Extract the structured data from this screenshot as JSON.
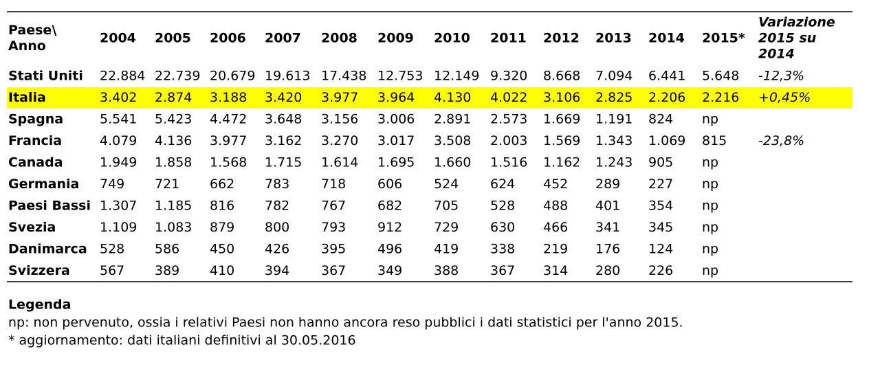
{
  "table": {
    "header": [
      [
        "Paese\\",
        "Anno"
      ],
      "2004",
      "2005",
      "2006",
      "2007",
      "2008",
      "2009",
      "2010",
      "2011",
      "2012",
      "2013",
      "2014",
      "2015*",
      [
        "Variazione",
        "2015 su",
        "2014"
      ]
    ],
    "rows": [
      {
        "country": "Stati Uniti",
        "values": [
          "22.884",
          "22.739",
          "20.679",
          "19.613",
          "17.438",
          "12.753",
          "12.149",
          "9.320",
          "8.668",
          "7.094",
          "6.441",
          "5.648"
        ],
        "change": "-12,3%"
      },
      {
        "country": "Italia",
        "values": [
          "3.402",
          "2.874",
          "3.188",
          "3.420",
          "3.977",
          "3.964",
          "4.130",
          "4.022",
          "3.106",
          "2.825",
          "2.206",
          "2.216"
        ],
        "change": "+0,45%",
        "highlight": "#ffff00"
      },
      {
        "country": "Spagna",
        "values": [
          "5.541",
          "5.423",
          "4.472",
          "3.648",
          "3.156",
          "3.006",
          "2.891",
          "2.573",
          "1.669",
          "1.191",
          "824",
          "np"
        ]
      },
      {
        "country": "Francia",
        "values": [
          "4.079",
          "4.136",
          "3.977",
          "3.162",
          "3.270",
          "3.017",
          "3.508",
          "2.003",
          "1.569",
          "1.343",
          "1.069",
          "815"
        ],
        "change": "-23,8%"
      },
      {
        "country": "Canada",
        "values": [
          "1.949",
          "1.858",
          "1.568",
          "1.715",
          "1.614",
          "1.695",
          "1.660",
          "1.516",
          "1.162",
          "1.243",
          "905",
          "np"
        ]
      },
      {
        "country": "Germania",
        "values": [
          "749",
          "721",
          "662",
          "783",
          "718",
          "606",
          "524",
          "624",
          "452",
          "289",
          "227",
          "np"
        ]
      },
      {
        "country": "Paesi Bassi",
        "values": [
          "1.307",
          "1.185",
          "816",
          "782",
          "767",
          "682",
          "705",
          "528",
          "488",
          "401",
          "354",
          "np"
        ]
      },
      {
        "country": "Svezia",
        "values": [
          "1.109",
          "1.083",
          "879",
          "800",
          "793",
          "912",
          "729",
          "630",
          "466",
          "341",
          "345",
          "np"
        ]
      },
      {
        "country": "Danimarca",
        "values": [
          "528",
          "586",
          "450",
          "426",
          "395",
          "496",
          "419",
          "338",
          "219",
          "176",
          "124",
          "np"
        ]
      },
      {
        "country": "Svizzera",
        "values": [
          "567",
          "389",
          "410",
          "394",
          "367",
          "349",
          "388",
          "367",
          "314",
          "280",
          "226",
          "np"
        ]
      }
    ]
  },
  "legend": {
    "title": "Legenda",
    "lines": [
      "np: non pervenuto, ossia i relativi Paesi non hanno ancora reso pubblici i dati statistici per l'anno 2015.",
      "* aggiornamento: dati italiani definitivi al 30.05.2016"
    ]
  }
}
